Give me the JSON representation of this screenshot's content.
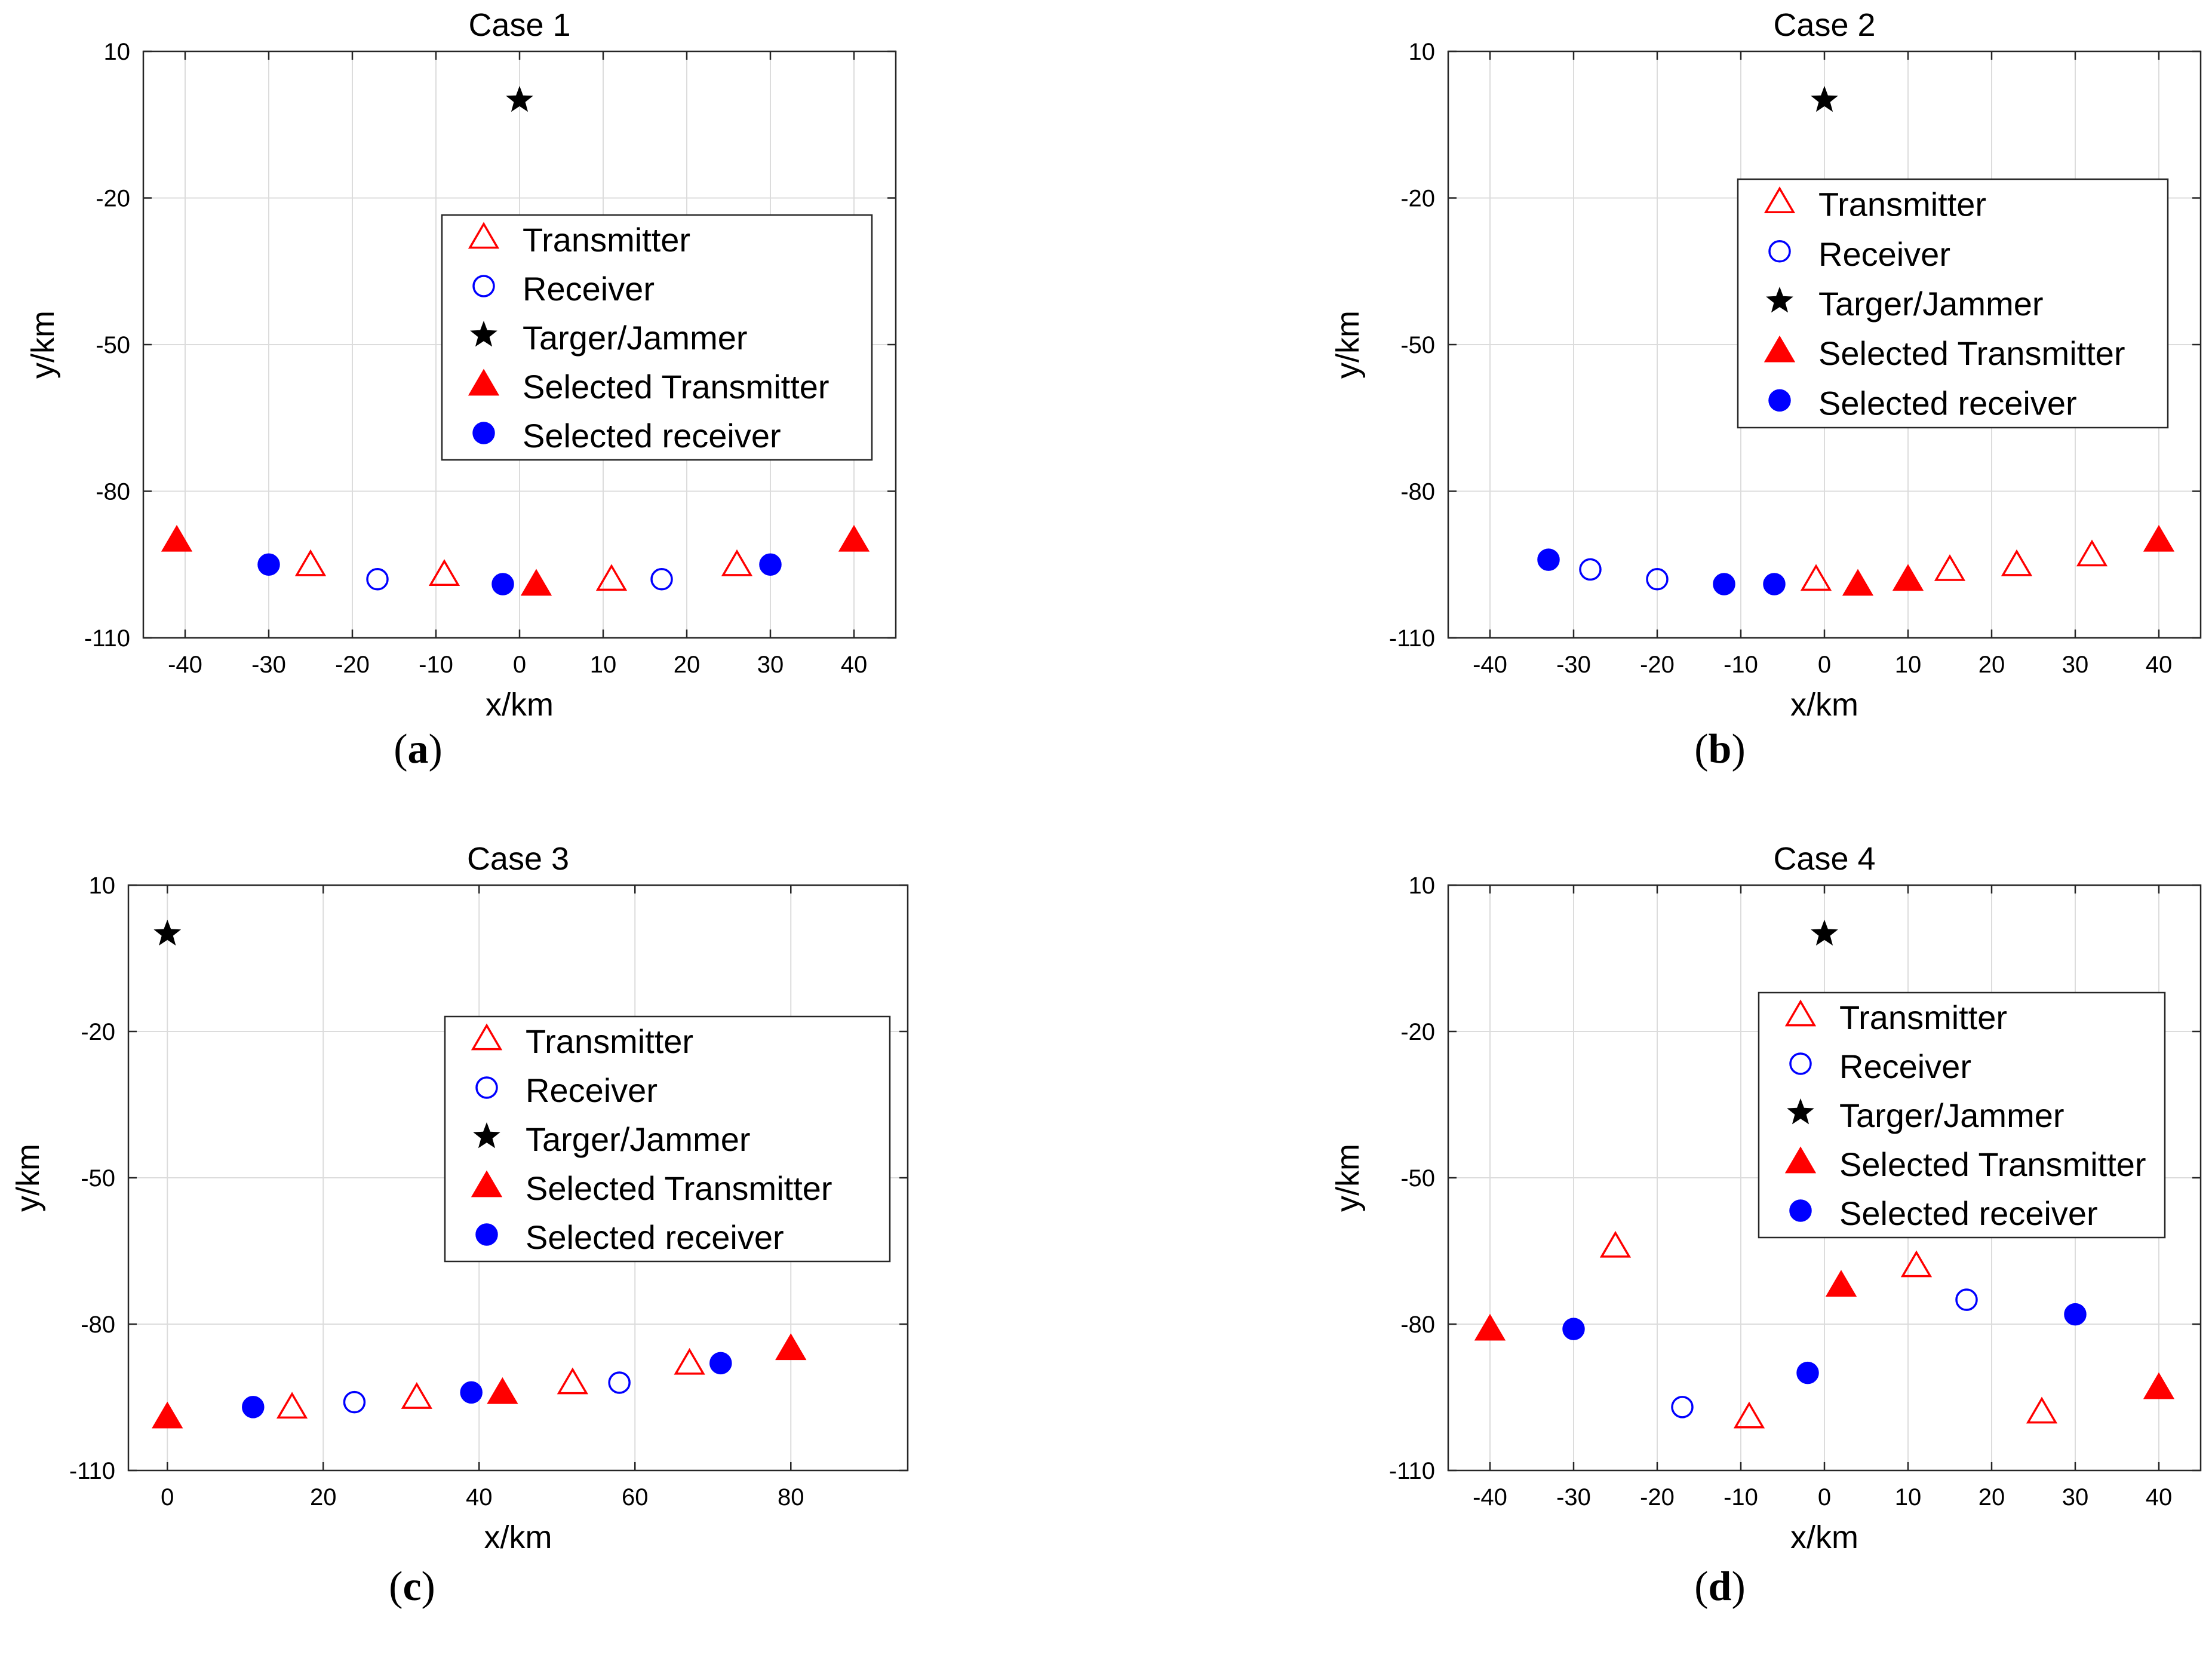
{
  "legend_labels": {
    "transmitter": "Transmitter",
    "receiver": "Receiver",
    "target": "Targer/Jammer",
    "selected_transmitter": "Selected Transmitter",
    "selected_receiver": "Selected receiver"
  },
  "colors": {
    "transmitter": "#ff0000",
    "receiver": "#0000ff",
    "target": "#000000"
  },
  "chart_data": [
    {
      "type": "scatter",
      "title": "Case 1",
      "caption_letter": "a",
      "xlabel": "x/km",
      "ylabel": "y/km",
      "xlim": [
        -45,
        45
      ],
      "ylim": [
        -110,
        10
      ],
      "xticks": [
        -40,
        -30,
        -20,
        -10,
        0,
        10,
        20,
        30,
        40
      ],
      "yticks": [
        10,
        -20,
        -50,
        -80,
        -110
      ],
      "grid": true,
      "legend_location": "center-right",
      "series": {
        "transmitter": [
          [
            -25,
            -95
          ],
          [
            -9,
            -97
          ],
          [
            11,
            -98
          ],
          [
            26,
            -95
          ]
        ],
        "receiver": [
          [
            -17,
            -98
          ],
          [
            17,
            -98
          ]
        ],
        "target": [
          [
            0,
            0
          ]
        ],
        "selected_transmitter": [
          [
            -41,
            -90
          ],
          [
            2,
            -99
          ],
          [
            40,
            -90
          ]
        ],
        "selected_receiver": [
          [
            -30,
            -95
          ],
          [
            -2,
            -99
          ],
          [
            30,
            -95
          ]
        ]
      }
    },
    {
      "type": "scatter",
      "title": "Case 2",
      "caption_letter": "b",
      "xlabel": "x/km",
      "ylabel": "y/km",
      "xlim": [
        -45,
        45
      ],
      "ylim": [
        -110,
        10
      ],
      "xticks": [
        -40,
        -30,
        -20,
        -10,
        0,
        10,
        20,
        30,
        40
      ],
      "yticks": [
        10,
        -20,
        -50,
        -80,
        -110
      ],
      "grid": true,
      "legend_location": "upper-right",
      "series": {
        "transmitter": [
          [
            -1,
            -98
          ],
          [
            15,
            -96
          ],
          [
            23,
            -95
          ],
          [
            32,
            -93
          ]
        ],
        "receiver": [
          [
            -28,
            -96
          ],
          [
            -20,
            -98
          ]
        ],
        "target": [
          [
            0,
            0
          ]
        ],
        "selected_transmitter": [
          [
            4,
            -99
          ],
          [
            10,
            -98
          ],
          [
            40,
            -90
          ]
        ],
        "selected_receiver": [
          [
            -33,
            -94
          ],
          [
            -12,
            -99
          ],
          [
            -6,
            -99
          ]
        ]
      }
    },
    {
      "type": "scatter",
      "title": "Case 3",
      "caption_letter": "c",
      "xlabel": "x/km",
      "ylabel": "y/km",
      "xlim": [
        -5,
        95
      ],
      "ylim": [
        -110,
        10
      ],
      "xticks": [
        0,
        20,
        40,
        60,
        80
      ],
      "yticks": [
        10,
        -20,
        -50,
        -80,
        -110
      ],
      "grid": true,
      "legend_location": "center-right",
      "series": {
        "transmitter": [
          [
            16,
            -97
          ],
          [
            32,
            -95
          ],
          [
            52,
            -92
          ],
          [
            67,
            -88
          ]
        ],
        "receiver": [
          [
            24,
            -96
          ],
          [
            58,
            -92
          ]
        ],
        "target": [
          [
            0,
            0
          ]
        ],
        "selected_transmitter": [
          [
            0,
            -99
          ],
          [
            43,
            -94
          ],
          [
            80,
            -85
          ]
        ],
        "selected_receiver": [
          [
            11,
            -97
          ],
          [
            39,
            -94
          ],
          [
            71,
            -88
          ]
        ]
      }
    },
    {
      "type": "scatter",
      "title": "Case 4",
      "caption_letter": "d",
      "xlabel": "x/km",
      "ylabel": "y/km",
      "xlim": [
        -45,
        45
      ],
      "ylim": [
        -110,
        10
      ],
      "xticks": [
        -40,
        -30,
        -20,
        -10,
        0,
        10,
        20,
        30,
        40
      ],
      "yticks": [
        10,
        -20,
        -50,
        -80,
        -110
      ],
      "grid": true,
      "legend_location": "upper-right",
      "series": {
        "transmitter": [
          [
            -25,
            -64
          ],
          [
            -9,
            -99
          ],
          [
            11,
            -68
          ],
          [
            26,
            -98
          ]
        ],
        "receiver": [
          [
            -17,
            -97
          ],
          [
            17,
            -75
          ]
        ],
        "target": [
          [
            0,
            0
          ]
        ],
        "selected_transmitter": [
          [
            -40,
            -81
          ],
          [
            2,
            -72
          ],
          [
            40,
            -93
          ]
        ],
        "selected_receiver": [
          [
            -30,
            -81
          ],
          [
            -2,
            -90
          ],
          [
            30,
            -78
          ]
        ]
      }
    }
  ]
}
